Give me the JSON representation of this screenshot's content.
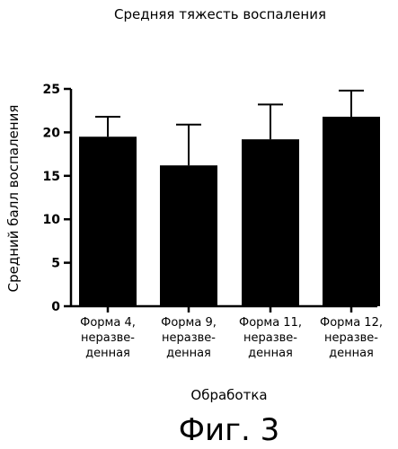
{
  "chart_data": {
    "type": "bar",
    "title": "Средняя тяжесть воспаления",
    "ylabel": "Средний балл воспаления",
    "xlabel": "Обработка",
    "categories": [
      [
        "Форма 4,",
        "неразве-",
        "денная"
      ],
      [
        "Форма 9,",
        "неразве-",
        "денная"
      ],
      [
        "Форма 11,",
        "неразве-",
        "денная"
      ],
      [
        "Форма 12,",
        "неразве-",
        "денная"
      ]
    ],
    "values": [
      19.5,
      16.2,
      19.2,
      21.8
    ],
    "errors": [
      2.3,
      4.7,
      4.0,
      3.0
    ],
    "ylim": [
      0,
      25
    ],
    "yticks": [
      "0",
      "5",
      "10",
      "15",
      "20",
      "25"
    ],
    "grid": false,
    "bar_color": "#000000"
  },
  "figure_caption": "Фиг. 3"
}
